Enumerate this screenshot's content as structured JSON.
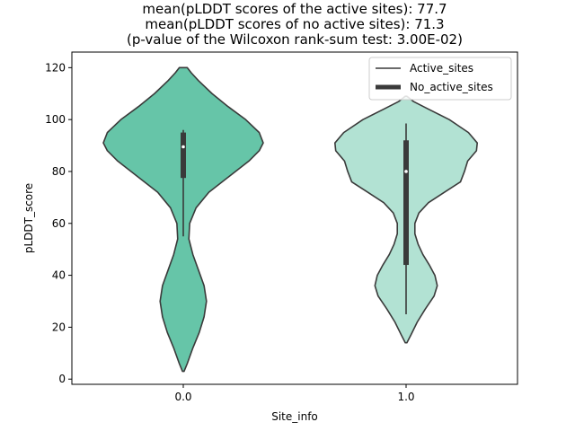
{
  "chart_data": {
    "type": "violin",
    "title_lines": [
      "mean(pLDDT scores of the active sites): 77.7",
      "mean(pLDDT scores of no active sites): 71.3",
      "(p-value of the Wilcoxon rank-sum test: 3.00E-02)"
    ],
    "xlabel": "Site_info",
    "ylabel": "pLDDT_score",
    "ylim": [
      -2,
      126
    ],
    "yticks": [
      0,
      20,
      40,
      60,
      80,
      100,
      120
    ],
    "categories": [
      "0.0",
      "1.0"
    ],
    "legend": {
      "placement": "top-right",
      "entries": [
        "Active_sites",
        "No_active_sites"
      ]
    },
    "violins": [
      {
        "category": "0.0",
        "color": "#66c5a8",
        "min": 3,
        "max": 120,
        "q1": 77.5,
        "median": 89.5,
        "q3": 95,
        "whisker_low": 55,
        "whisker_high": 96,
        "profile": [
          [
            3,
            0.01
          ],
          [
            6,
            0.05
          ],
          [
            12,
            0.12
          ],
          [
            18,
            0.2
          ],
          [
            24,
            0.26
          ],
          [
            30,
            0.29
          ],
          [
            36,
            0.26
          ],
          [
            42,
            0.19
          ],
          [
            48,
            0.12
          ],
          [
            54,
            0.07
          ],
          [
            60,
            0.08
          ],
          [
            66,
            0.16
          ],
          [
            72,
            0.32
          ],
          [
            78,
            0.57
          ],
          [
            84,
            0.82
          ],
          [
            88,
            0.95
          ],
          [
            91,
            1.0
          ],
          [
            95,
            0.95
          ],
          [
            100,
            0.78
          ],
          [
            105,
            0.56
          ],
          [
            110,
            0.36
          ],
          [
            115,
            0.19
          ],
          [
            118,
            0.1
          ],
          [
            120,
            0.05
          ]
        ]
      },
      {
        "category": "1.0",
        "color": "#b2e2d3",
        "min": 14,
        "max": 109,
        "q1": 44,
        "median": 80,
        "q3": 92,
        "whisker_low": 25,
        "whisker_high": 98.5,
        "profile": [
          [
            14,
            0.01
          ],
          [
            17,
            0.06
          ],
          [
            22,
            0.14
          ],
          [
            27,
            0.24
          ],
          [
            32,
            0.35
          ],
          [
            36,
            0.39
          ],
          [
            40,
            0.36
          ],
          [
            44,
            0.29
          ],
          [
            48,
            0.21
          ],
          [
            52,
            0.15
          ],
          [
            56,
            0.11
          ],
          [
            60,
            0.11
          ],
          [
            64,
            0.16
          ],
          [
            68,
            0.28
          ],
          [
            72,
            0.48
          ],
          [
            76,
            0.68
          ],
          [
            80,
            0.73
          ],
          [
            84,
            0.77
          ],
          [
            88,
            0.88
          ],
          [
            91,
            0.89
          ],
          [
            95,
            0.78
          ],
          [
            100,
            0.54
          ],
          [
            104,
            0.28
          ],
          [
            107,
            0.09
          ],
          [
            109,
            0.01
          ]
        ]
      }
    ]
  }
}
